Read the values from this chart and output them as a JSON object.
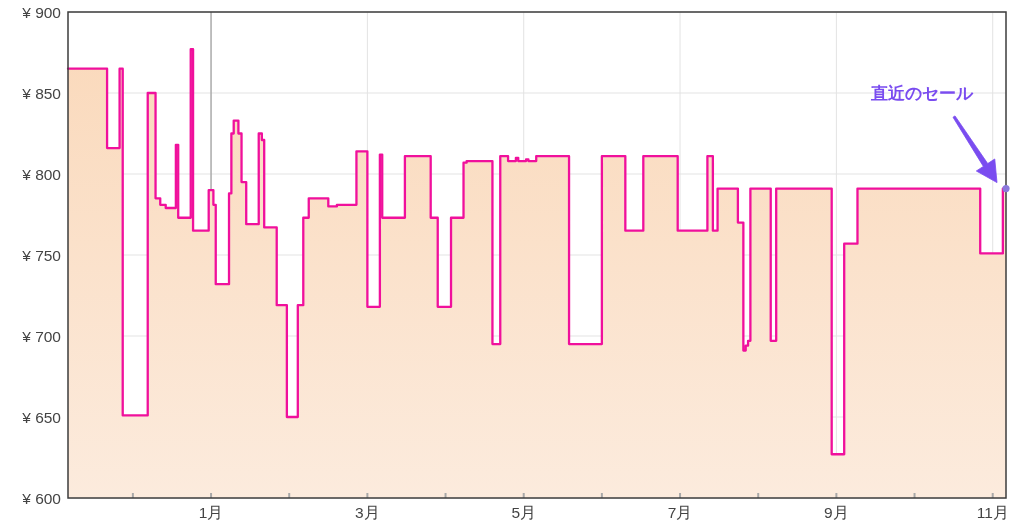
{
  "chart_data": {
    "type": "area",
    "color": "#f0109c",
    "x": [
      -0.83,
      -0.33,
      -0.33,
      -0.17,
      -0.17,
      -0.13,
      -0.13,
      0.19,
      0.19,
      0.29,
      0.29,
      0.35,
      0.35,
      0.42,
      0.42,
      0.55,
      0.55,
      0.58,
      0.58,
      0.74,
      0.74,
      0.77,
      0.77,
      0.97,
      0.97,
      1.03,
      1.03,
      1.06,
      1.06,
      1.23,
      1.23,
      1.26,
      1.26,
      1.29,
      1.29,
      1.35,
      1.35,
      1.39,
      1.39,
      1.45,
      1.45,
      1.61,
      1.61,
      1.65,
      1.65,
      1.68,
      1.68,
      1.84,
      1.84,
      1.97,
      1.97,
      2.11,
      2.11,
      2.18,
      2.18,
      2.25,
      2.25,
      2.5,
      2.5,
      2.61,
      2.61,
      2.86,
      2.86,
      3.0,
      3.0,
      3.16,
      3.16,
      3.19,
      3.19,
      3.48,
      3.48,
      3.81,
      3.81,
      3.9,
      3.9,
      4.07,
      4.07,
      4.23,
      4.23,
      4.27,
      4.27,
      4.6,
      4.6,
      4.7,
      4.7,
      4.8,
      4.8,
      4.9,
      4.9,
      4.93,
      4.93,
      5.03,
      5.03,
      5.06,
      5.06,
      5.16,
      5.16,
      5.58,
      5.58,
      6.0,
      6.0,
      6.3,
      6.3,
      6.53,
      6.53,
      6.97,
      6.97,
      7.35,
      7.35,
      7.42,
      7.42,
      7.48,
      7.48,
      7.74,
      7.74,
      7.81,
      7.81,
      7.84,
      7.84,
      7.87,
      7.87,
      7.9,
      7.9,
      8.16,
      8.16,
      8.23,
      8.23,
      8.94,
      8.94,
      9.1,
      9.1,
      9.27,
      9.27,
      10.84,
      10.84,
      11.13,
      11.13,
      11.17
    ],
    "values": [
      865,
      865,
      816,
      816,
      865,
      865,
      651,
      651,
      850,
      850,
      785,
      785,
      781,
      781,
      779,
      779,
      818,
      818,
      773,
      773,
      877,
      877,
      765,
      765,
      790,
      790,
      781,
      781,
      732,
      732,
      788,
      788,
      825,
      825,
      833,
      833,
      825,
      825,
      795,
      795,
      769,
      769,
      825,
      825,
      821,
      821,
      767,
      767,
      719,
      719,
      650,
      650,
      719,
      719,
      773,
      773,
      785,
      785,
      780,
      780,
      781,
      781,
      814,
      814,
      718,
      718,
      812,
      812,
      773,
      773,
      811,
      811,
      773,
      773,
      718,
      718,
      773,
      773,
      807,
      807,
      808,
      808,
      695,
      695,
      811,
      811,
      808,
      808,
      810,
      810,
      808,
      808,
      809,
      809,
      808,
      808,
      811,
      811,
      695,
      695,
      811,
      811,
      765,
      765,
      811,
      811,
      765,
      765,
      811,
      811,
      765,
      765,
      791,
      791,
      770,
      770,
      691,
      691,
      694,
      694,
      697,
      697,
      791,
      791,
      697,
      697,
      791,
      791,
      627,
      627,
      757,
      757,
      791,
      791,
      751,
      751,
      791,
      791
    ],
    "xlim": [
      -0.83,
      11.17
    ],
    "xticks": [
      {
        "value": 0,
        "label": null
      },
      {
        "value": 1,
        "label": "1月"
      },
      {
        "value": 2,
        "label": null
      },
      {
        "value": 3,
        "label": "3月"
      },
      {
        "value": 4,
        "label": null
      },
      {
        "value": 5,
        "label": "5月"
      },
      {
        "value": 6,
        "label": null
      },
      {
        "value": 7,
        "label": "7月"
      },
      {
        "value": 8,
        "label": null
      },
      {
        "value": 9,
        "label": "9月"
      },
      {
        "value": 10,
        "label": null
      },
      {
        "value": 11,
        "label": "11月"
      }
    ],
    "ylim": [
      600,
      900
    ],
    "yticks": [
      {
        "value": 600,
        "label": "¥ 600"
      },
      {
        "value": 650,
        "label": "¥ 650"
      },
      {
        "value": 700,
        "label": "¥ 700"
      },
      {
        "value": 750,
        "label": "¥ 750"
      },
      {
        "value": 800,
        "label": "¥ 800"
      },
      {
        "value": 850,
        "label": "¥ 850"
      },
      {
        "value": 900,
        "label": "¥ 900"
      }
    ],
    "grid": true,
    "ref_lines": [
      {
        "axis": "x",
        "value": 1,
        "color": "#9e9e9e"
      }
    ],
    "annotations": [
      "直近のセール"
    ]
  }
}
